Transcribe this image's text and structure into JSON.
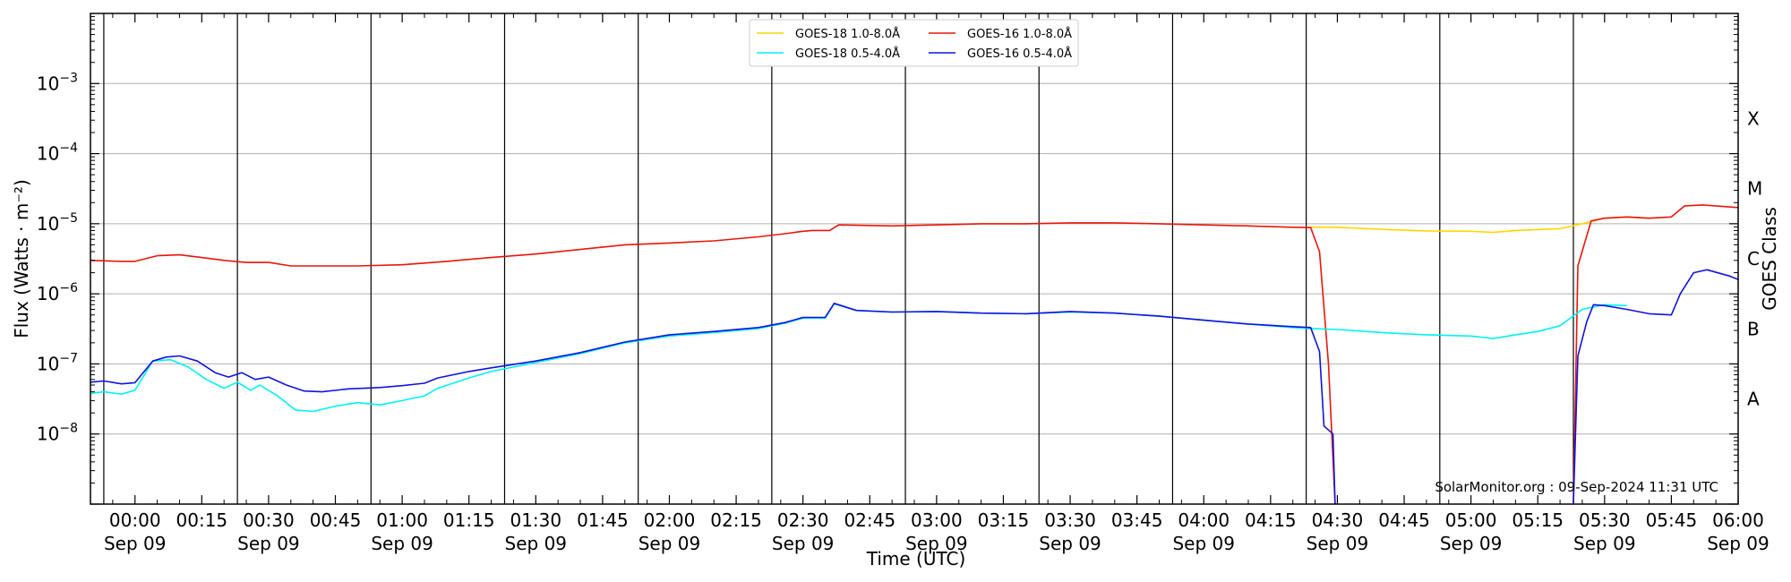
{
  "chart_data": {
    "type": "line",
    "xlabel": "Time (UTC)",
    "ylabel": "Flux (Watts · m⁻²)",
    "ylabel_right": "GOES Class",
    "credit": "SolarMonitor.org : 09-Sep-2024 11:31 UTC",
    "scale_y": "log",
    "ylim": [
      1e-09,
      0.01
    ],
    "xlim_minutes": [
      -10,
      360
    ],
    "grid": "horizontal gridlines at each decade; vertical lines every 30 minutes",
    "legend_position": "top-center",
    "y_ticks": [
      {
        "value": 1e-08,
        "base": "10",
        "exp": "−8"
      },
      {
        "value": 1e-07,
        "base": "10",
        "exp": "−7"
      },
      {
        "value": 1e-06,
        "base": "10",
        "exp": "−6"
      },
      {
        "value": 1e-05,
        "base": "10",
        "exp": "−5"
      },
      {
        "value": 0.0001,
        "base": "10",
        "exp": "−4"
      },
      {
        "value": 0.001,
        "base": "10",
        "exp": "−3"
      }
    ],
    "goes_classes": [
      {
        "label": "A",
        "value": 3.16e-08
      },
      {
        "label": "B",
        "value": 3.16e-07
      },
      {
        "label": "C",
        "value": 3.16e-06
      },
      {
        "label": "M",
        "value": 3.16e-05
      },
      {
        "label": "X",
        "value": 0.000316
      }
    ],
    "x_ticks": [
      {
        "t": 0,
        "time": "00:00",
        "date": "Sep 09"
      },
      {
        "t": 15,
        "time": "00:15",
        "date": ""
      },
      {
        "t": 30,
        "time": "00:30",
        "date": "Sep 09"
      },
      {
        "t": 45,
        "time": "00:45",
        "date": ""
      },
      {
        "t": 60,
        "time": "01:00",
        "date": "Sep 09"
      },
      {
        "t": 75,
        "time": "01:15",
        "date": ""
      },
      {
        "t": 90,
        "time": "01:30",
        "date": "Sep 09"
      },
      {
        "t": 105,
        "time": "01:45",
        "date": ""
      },
      {
        "t": 120,
        "time": "02:00",
        "date": "Sep 09"
      },
      {
        "t": 135,
        "time": "02:15",
        "date": ""
      },
      {
        "t": 150,
        "time": "02:30",
        "date": "Sep 09"
      },
      {
        "t": 165,
        "time": "02:45",
        "date": ""
      },
      {
        "t": 180,
        "time": "03:00",
        "date": "Sep 09"
      },
      {
        "t": 195,
        "time": "03:15",
        "date": ""
      },
      {
        "t": 210,
        "time": "03:30",
        "date": "Sep 09"
      },
      {
        "t": 225,
        "time": "03:45",
        "date": ""
      },
      {
        "t": 240,
        "time": "04:00",
        "date": "Sep 09"
      },
      {
        "t": 255,
        "time": "04:15",
        "date": ""
      },
      {
        "t": 270,
        "time": "04:30",
        "date": "Sep 09"
      },
      {
        "t": 285,
        "time": "04:45",
        "date": ""
      },
      {
        "t": 300,
        "time": "05:00",
        "date": "Sep 09"
      },
      {
        "t": 315,
        "time": "05:15",
        "date": ""
      },
      {
        "t": 330,
        "time": "05:30",
        "date": "Sep 09"
      },
      {
        "t": 345,
        "time": "05:45",
        "date": ""
      },
      {
        "t": 360,
        "time": "06:00",
        "date": "Sep 09"
      }
    ],
    "vertical_lines": [
      -7,
      23,
      53,
      83,
      113,
      143,
      173,
      203,
      233,
      263,
      293,
      323
    ],
    "series": [
      {
        "name": "GOES-18 1.0-8.0Å",
        "color": "#ffd700",
        "points": [
          [
            264,
            8.9e-06
          ],
          [
            270,
            8.9e-06
          ],
          [
            280,
            8.3e-06
          ],
          [
            290,
            7.9e-06
          ],
          [
            300,
            7.8e-06
          ],
          [
            305,
            7.5e-06
          ],
          [
            310,
            8e-06
          ],
          [
            320,
            8.5e-06
          ],
          [
            325,
            1e-05
          ],
          [
            330,
            1.2e-05
          ],
          [
            335,
            1.25e-05
          ],
          [
            340,
            1.2e-05
          ]
        ]
      },
      {
        "name": "GOES-16 1.0-8.0Å",
        "color": "#e8160c",
        "points": [
          [
            -10,
            3e-06
          ],
          [
            -3,
            2.9e-06
          ],
          [
            0,
            2.9e-06
          ],
          [
            5,
            3.5e-06
          ],
          [
            10,
            3.6e-06
          ],
          [
            15,
            3.3e-06
          ],
          [
            20,
            3e-06
          ],
          [
            25,
            2.8e-06
          ],
          [
            30,
            2.8e-06
          ],
          [
            35,
            2.5e-06
          ],
          [
            40,
            2.5e-06
          ],
          [
            50,
            2.5e-06
          ],
          [
            60,
            2.6e-06
          ],
          [
            70,
            2.9e-06
          ],
          [
            80,
            3.3e-06
          ],
          [
            90,
            3.7e-06
          ],
          [
            100,
            4.3e-06
          ],
          [
            110,
            5e-06
          ],
          [
            120,
            5.3e-06
          ],
          [
            130,
            5.7e-06
          ],
          [
            140,
            6.5e-06
          ],
          [
            146,
            7.2e-06
          ],
          [
            150,
            7.8e-06
          ],
          [
            152,
            8e-06
          ],
          [
            156,
            8e-06
          ],
          [
            158,
            9.6e-06
          ],
          [
            162,
            9.5e-06
          ],
          [
            170,
            9.3e-06
          ],
          [
            180,
            9.6e-06
          ],
          [
            190,
            1e-05
          ],
          [
            200,
            1e-05
          ],
          [
            210,
            1.03e-05
          ],
          [
            220,
            1.03e-05
          ],
          [
            230,
            1e-05
          ],
          [
            240,
            9.6e-06
          ],
          [
            250,
            9.3e-06
          ],
          [
            260,
            8.9e-06
          ],
          [
            264,
            8.8e-06
          ],
          [
            266,
            4e-06
          ],
          [
            268,
            1e-07
          ],
          [
            269.5,
            1e-09
          ]
        ]
      },
      {
        "name": "GOES-16 1.0-8.0Å (resumed)",
        "color": "#e8160c",
        "points": [
          [
            323,
            1e-09
          ],
          [
            324,
            2.5e-06
          ],
          [
            327,
            1.1e-05
          ],
          [
            330,
            1.2e-05
          ],
          [
            335,
            1.25e-05
          ],
          [
            340,
            1.2e-05
          ],
          [
            345,
            1.25e-05
          ],
          [
            348,
            1.8e-05
          ],
          [
            352,
            1.85e-05
          ],
          [
            360,
            1.7e-05
          ],
          [
            370,
            1.3e-05
          ]
        ]
      },
      {
        "name": "GOES-18 0.5-4.0Å",
        "color": "#00f2f2",
        "points": [
          [
            -10,
            3.8e-08
          ],
          [
            -7,
            4e-08
          ],
          [
            -3,
            3.7e-08
          ],
          [
            0,
            4.2e-08
          ],
          [
            4,
            1.1e-07
          ],
          [
            8,
            1.15e-07
          ],
          [
            12,
            9e-08
          ],
          [
            16,
            6e-08
          ],
          [
            20,
            4.5e-08
          ],
          [
            23,
            5.5e-08
          ],
          [
            26,
            4.2e-08
          ],
          [
            28,
            5e-08
          ],
          [
            32,
            3.5e-08
          ],
          [
            36,
            2.2e-08
          ],
          [
            40,
            2.1e-08
          ],
          [
            45,
            2.5e-08
          ],
          [
            50,
            2.8e-08
          ],
          [
            55,
            2.6e-08
          ],
          [
            60,
            3e-08
          ],
          [
            65,
            3.5e-08
          ],
          [
            68,
            4.5e-08
          ],
          [
            75,
            6.3e-08
          ],
          [
            80,
            7.8e-08
          ],
          [
            90,
            1.05e-07
          ],
          [
            100,
            1.4e-07
          ],
          [
            110,
            2e-07
          ],
          [
            120,
            2.5e-07
          ],
          [
            130,
            2.8e-07
          ],
          [
            140,
            3.2e-07
          ],
          [
            146,
            3.8e-07
          ],
          [
            150,
            4.5e-07
          ],
          [
            155,
            4.5e-07
          ],
          [
            157,
            7.2e-07
          ],
          [
            162,
            5.8e-07
          ],
          [
            170,
            5.5e-07
          ],
          [
            180,
            5.6e-07
          ],
          [
            190,
            5.3e-07
          ],
          [
            200,
            5.2e-07
          ],
          [
            210,
            5.5e-07
          ],
          [
            220,
            5.3e-07
          ],
          [
            230,
            4.8e-07
          ],
          [
            240,
            4.2e-07
          ],
          [
            250,
            3.7e-07
          ],
          [
            260,
            3.3e-07
          ],
          [
            264,
            3.2e-07
          ],
          [
            270,
            3.1e-07
          ],
          [
            280,
            2.8e-07
          ],
          [
            290,
            2.6e-07
          ],
          [
            300,
            2.5e-07
          ],
          [
            305,
            2.3e-07
          ],
          [
            310,
            2.6e-07
          ],
          [
            315,
            2.9e-07
          ],
          [
            320,
            3.5e-07
          ],
          [
            325,
            6e-07
          ],
          [
            330,
            7e-07
          ],
          [
            335,
            6.8e-07
          ]
        ]
      },
      {
        "name": "GOES-16 0.5-4.0Å",
        "color": "#1212e0",
        "points": [
          [
            -10,
            5.5e-08
          ],
          [
            -7,
            5.7e-08
          ],
          [
            -3,
            5.2e-08
          ],
          [
            0,
            5.4e-08
          ],
          [
            4,
            1.1e-07
          ],
          [
            7,
            1.25e-07
          ],
          [
            10,
            1.3e-07
          ],
          [
            14,
            1.1e-07
          ],
          [
            18,
            7.5e-08
          ],
          [
            21,
            6.5e-08
          ],
          [
            24,
            7.5e-08
          ],
          [
            27,
            6e-08
          ],
          [
            30,
            6.5e-08
          ],
          [
            34,
            5e-08
          ],
          [
            38,
            4.1e-08
          ],
          [
            42,
            4e-08
          ],
          [
            48,
            4.4e-08
          ],
          [
            55,
            4.6e-08
          ],
          [
            60,
            4.9e-08
          ],
          [
            65,
            5.3e-08
          ],
          [
            68,
            6.3e-08
          ],
          [
            75,
            7.8e-08
          ],
          [
            80,
            8.8e-08
          ],
          [
            90,
            1.1e-07
          ],
          [
            100,
            1.45e-07
          ],
          [
            110,
            2.05e-07
          ],
          [
            120,
            2.6e-07
          ],
          [
            130,
            2.9e-07
          ],
          [
            140,
            3.3e-07
          ],
          [
            146,
            3.9e-07
          ],
          [
            150,
            4.6e-07
          ],
          [
            155,
            4.6e-07
          ],
          [
            157,
            7.3e-07
          ],
          [
            162,
            5.8e-07
          ],
          [
            170,
            5.5e-07
          ],
          [
            180,
            5.6e-07
          ],
          [
            190,
            5.3e-07
          ],
          [
            200,
            5.2e-07
          ],
          [
            210,
            5.6e-07
          ],
          [
            220,
            5.3e-07
          ],
          [
            230,
            4.8e-07
          ],
          [
            240,
            4.2e-07
          ],
          [
            250,
            3.7e-07
          ],
          [
            260,
            3.4e-07
          ],
          [
            264,
            3.3e-07
          ],
          [
            266,
            1.5e-07
          ],
          [
            267,
            1.3e-08
          ],
          [
            269,
            1e-08
          ],
          [
            269.5,
            1e-09
          ]
        ]
      },
      {
        "name": "GOES-16 0.5-4.0Å (resumed)",
        "color": "#1212e0",
        "points": [
          [
            323,
            1e-09
          ],
          [
            324,
            1.3e-07
          ],
          [
            326,
            4e-07
          ],
          [
            327.5,
            7e-07
          ],
          [
            330,
            6.8e-07
          ],
          [
            335,
            6e-07
          ],
          [
            340,
            5.2e-07
          ],
          [
            345,
            5e-07
          ],
          [
            347,
            1e-06
          ],
          [
            350,
            2e-06
          ],
          [
            353,
            2.2e-06
          ],
          [
            358,
            1.8e-06
          ],
          [
            365,
            1.2e-06
          ],
          [
            370,
            7.8e-07
          ]
        ]
      }
    ],
    "legend": [
      {
        "label": "GOES-18 1.0-8.0Å",
        "color": "#ffd700"
      },
      {
        "label": "GOES-18 0.5-4.0Å",
        "color": "#00f2f2"
      },
      {
        "label": "GOES-16 1.0-8.0Å",
        "color": "#e8160c"
      },
      {
        "label": "GOES-16 0.5-4.0Å",
        "color": "#1212e0"
      }
    ]
  }
}
